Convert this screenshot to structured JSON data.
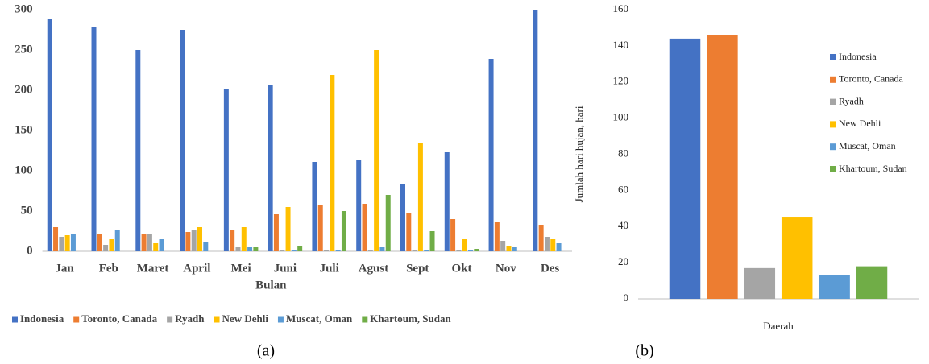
{
  "chart_data": [
    {
      "type": "bar",
      "xlabel": "Bulan",
      "caption": "(a)",
      "categories": [
        "Jan",
        "Feb",
        "Maret",
        "April",
        "Mei",
        "Juni",
        "Juli",
        "Agust",
        "Sept",
        "Okt",
        "Nov",
        "Des"
      ],
      "series": [
        {
          "name": "Indonesia",
          "color": "#4472c4",
          "values": [
            288,
            278,
            250,
            275,
            202,
            207,
            111,
            113,
            84,
            123,
            239,
            299
          ]
        },
        {
          "name": "Toronto, Canada",
          "color": "#ed7d31",
          "values": [
            30,
            22,
            22,
            24,
            27,
            46,
            58,
            59,
            48,
            40,
            36,
            32
          ]
        },
        {
          "name": "Ryadh",
          "color": "#a5a5a5",
          "values": [
            18,
            8,
            22,
            26,
            5,
            1,
            1,
            1,
            1,
            1,
            13,
            18
          ]
        },
        {
          "name": "New Dehli",
          "color": "#ffc000",
          "values": [
            20,
            15,
            10,
            30,
            30,
            55,
            219,
            250,
            134,
            15,
            7,
            15
          ]
        },
        {
          "name": "Muscat, Oman",
          "color": "#5b9bd5",
          "values": [
            21,
            27,
            15,
            11,
            5,
            1,
            2,
            5,
            1,
            1,
            5,
            10
          ]
        },
        {
          "name": "Khartoum, Sudan",
          "color": "#70ad47",
          "values": [
            0,
            0,
            0,
            0,
            5,
            7,
            50,
            70,
            25,
            3,
            0,
            0
          ]
        }
      ],
      "ylim": [
        0,
        300
      ],
      "yticks": [
        0,
        50,
        100,
        150,
        200,
        250,
        300
      ],
      "grid": false,
      "legend": "bottom"
    },
    {
      "type": "bar",
      "xlabel": "Daerah",
      "ylabel": "Jumlah hari hujan, hari",
      "caption": "(b)",
      "categories": [
        null
      ],
      "series": [
        {
          "name": "Indonesia",
          "color": "#4472c4",
          "values": [
            144
          ]
        },
        {
          "name": "Toronto, Canada",
          "color": "#ed7d31",
          "values": [
            146
          ]
        },
        {
          "name": "Ryadh",
          "color": "#a5a5a5",
          "values": [
            17
          ]
        },
        {
          "name": "New Dehli",
          "color": "#ffc000",
          "values": [
            45
          ]
        },
        {
          "name": "Muscat, Oman",
          "color": "#5b9bd5",
          "values": [
            13
          ]
        },
        {
          "name": "Khartoum, Sudan",
          "color": "#70ad47",
          "values": [
            18
          ]
        }
      ],
      "ylim": [
        0,
        160
      ],
      "yticks": [
        0,
        20,
        40,
        60,
        80,
        100,
        120,
        140,
        160
      ],
      "grid": false,
      "legend": "right"
    }
  ]
}
